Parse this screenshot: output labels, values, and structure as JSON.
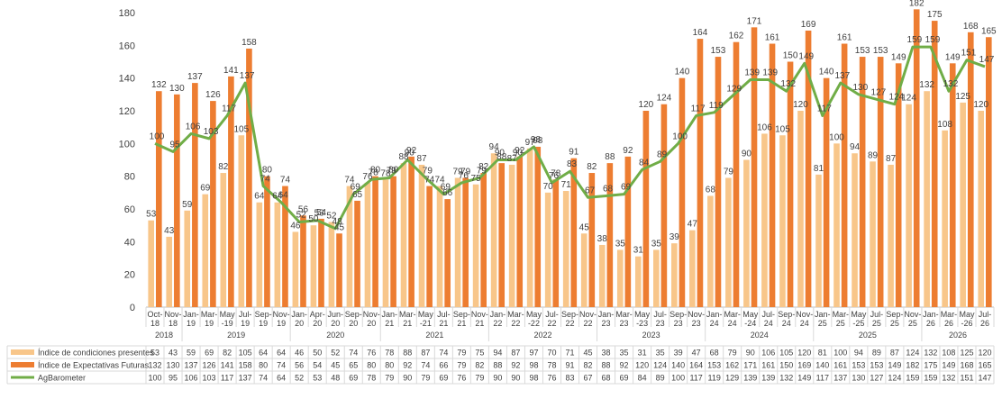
{
  "chart_data": {
    "type": "bar",
    "ylim": [
      0,
      180
    ],
    "yticks": [
      0,
      20,
      40,
      60,
      80,
      100,
      120,
      140,
      160,
      180
    ],
    "grid": false,
    "legend_placement": "table-bottom-left",
    "categories": [
      "Oct-18",
      "Nov-18",
      "Jan-19",
      "Mar-19",
      "May-19",
      "Jul-19",
      "Sep-19",
      "Nov-19",
      "Jan-20",
      "Apr-20",
      "Jun-20",
      "Sep-20",
      "Nov-20",
      "Jan-21",
      "Mar-21",
      "May-21",
      "Jul-21",
      "Sep-21",
      "Nov-21",
      "Jan-22",
      "Mar-22",
      "May-22",
      "Jul-22",
      "Sep-22",
      "Nov-22",
      "Jan-23",
      "Mar-23",
      "May-23",
      "Jul-23",
      "Sep-23",
      "Nov-23",
      "Jan-24",
      "Mar-24",
      "May-24",
      "Jul-24",
      "Sep-24",
      "Nov-24",
      "Jan-25",
      "Mar-25",
      "May-25",
      "Jul-25",
      "Sep-25",
      "Nov-25",
      "Jan-26",
      "Mar-26",
      "May-26",
      "Jul-26"
    ],
    "category_labels": [
      [
        "Oct-",
        "18"
      ],
      [
        "Nov-",
        "18"
      ],
      [
        "Jan-",
        "19"
      ],
      [
        "Mar-",
        "19"
      ],
      [
        "May",
        "-19"
      ],
      [
        "Jul-",
        "19"
      ],
      [
        "Sep-",
        "19"
      ],
      [
        "Nov-",
        "19"
      ],
      [
        "Jan-",
        "20"
      ],
      [
        "Apr-",
        "20"
      ],
      [
        "Jun-",
        "20"
      ],
      [
        "Sep-",
        "20"
      ],
      [
        "Nov-",
        "20"
      ],
      [
        "Jan-",
        "21"
      ],
      [
        "Mar-",
        "21"
      ],
      [
        "May",
        "-21"
      ],
      [
        "Jul-",
        "21"
      ],
      [
        "Sep-",
        "21"
      ],
      [
        "Nov-",
        "21"
      ],
      [
        "Jan-",
        "22"
      ],
      [
        "Mar-",
        "22"
      ],
      [
        "May",
        "-22"
      ],
      [
        "Jul-",
        "22"
      ],
      [
        "Sep-",
        "22"
      ],
      [
        "Nov-",
        "22"
      ],
      [
        "Jan-",
        "23"
      ],
      [
        "Mar-",
        "23"
      ],
      [
        "May",
        "-23"
      ],
      [
        "Jul-",
        "23"
      ],
      [
        "Sep-",
        "23"
      ],
      [
        "Nov-",
        "23"
      ],
      [
        "Jan-",
        "24"
      ],
      [
        "Mar-",
        "24"
      ],
      [
        "May",
        "-24"
      ],
      [
        "Jul-",
        "24"
      ],
      [
        "Sep-",
        "24"
      ],
      [
        "Nov-",
        "24"
      ],
      [
        "Jan-",
        "25"
      ],
      [
        "Mar-",
        "25"
      ],
      [
        "May",
        "-25"
      ],
      [
        "Jul-",
        "25"
      ],
      [
        "Sep-",
        "25"
      ],
      [
        "Nov-",
        "25"
      ],
      [
        "Jan-",
        "26"
      ],
      [
        "Mar-",
        "26"
      ],
      [
        "May",
        "-26"
      ],
      [
        "Jul-",
        "26"
      ]
    ],
    "years": [
      {
        "label": "2018",
        "from": 0,
        "to": 1
      },
      {
        "label": "2019",
        "from": 2,
        "to": 7
      },
      {
        "label": "2020",
        "from": 8,
        "to": 12
      },
      {
        "label": "2021",
        "from": 13,
        "to": 18
      },
      {
        "label": "2022",
        "from": 19,
        "to": 24
      },
      {
        "label": "2023",
        "from": 25,
        "to": 30
      },
      {
        "label": "2024",
        "from": 31,
        "to": 36
      },
      {
        "label": "2025",
        "from": 37,
        "to": 42
      },
      {
        "label": "2026",
        "from": 43,
        "to": 46
      }
    ],
    "series": [
      {
        "name": "Índice de condiciones presentes",
        "kind": "bar",
        "color": "#f8c68a",
        "values": [
          53,
          43,
          59,
          69,
          82,
          105,
          64,
          64,
          46,
          50,
          52,
          74,
          76,
          78,
          88,
          87,
          74,
          79,
          75,
          94,
          87,
          97,
          70,
          71,
          45,
          38,
          35,
          31,
          35,
          39,
          47,
          68,
          79,
          90,
          106,
          105,
          120,
          81,
          100,
          94,
          89,
          87,
          124,
          132,
          108,
          125,
          120
        ]
      },
      {
        "name": "Índice de Expectativas Futuras",
        "kind": "bar",
        "color": "#ed7d31",
        "values": [
          132,
          130,
          137,
          126,
          141,
          158,
          80,
          74,
          56,
          54,
          45,
          65,
          80,
          80,
          92,
          74,
          66,
          79,
          82,
          88,
          92,
          98,
          78,
          91,
          82,
          88,
          92,
          120,
          124,
          140,
          164,
          153,
          162,
          171,
          161,
          150,
          169,
          140,
          161,
          153,
          153,
          149,
          182,
          175,
          149,
          168,
          165
        ]
      },
      {
        "name": "AgBarometer",
        "kind": "line",
        "color": "#70ad47",
        "values": [
          100,
          95,
          106,
          103,
          117,
          137,
          74,
          64,
          52,
          53,
          48,
          69,
          78,
          79,
          90,
          79,
          69,
          76,
          79,
          90,
          90,
          98,
          76,
          83,
          67,
          68,
          69,
          84,
          89,
          100,
          117,
          119,
          129,
          139,
          139,
          132,
          149,
          117,
          137,
          130,
          127,
          124,
          159,
          159,
          132,
          151,
          147
        ]
      }
    ]
  }
}
